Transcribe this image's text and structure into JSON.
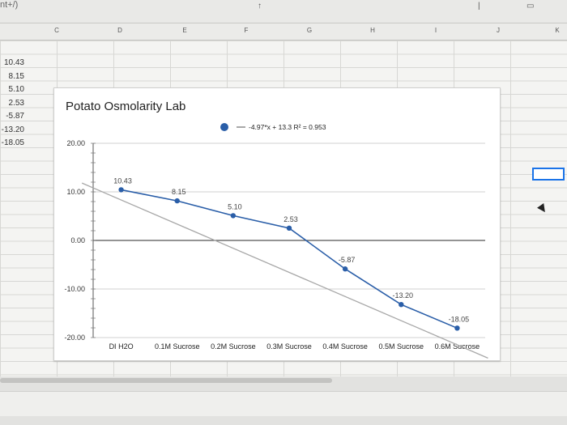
{
  "top_fragment": "nt+/)",
  "columns": [
    "C",
    "D",
    "E",
    "F",
    "G",
    "H",
    "I",
    "J",
    "K"
  ],
  "cell_values": [
    "10.43",
    "8.15",
    "5.10",
    "2.53",
    "-5.87",
    "-13.20",
    "-18.05"
  ],
  "chart_data": {
    "type": "line",
    "title": "Potato Osmolarity Lab",
    "categories": [
      "DI H2O",
      "0.1M Sucrose",
      "0.2M Sucrose",
      "0.3M Sucrose",
      "0.4M Sucrose",
      "0.5M Sucrose",
      "0.6M Sucrose"
    ],
    "series": [
      {
        "values": [
          10.43,
          8.15,
          5.1,
          2.53,
          -5.87,
          -13.2,
          -18.05
        ],
        "data_labels": [
          "10.43",
          "8.15",
          "5.10",
          "2.53",
          "-5.87",
          "-13.20",
          "-18.05"
        ],
        "color": "#2a5ea8"
      }
    ],
    "trendline": {
      "slope": -4.97,
      "intercept": 13.3,
      "r2": 0.953,
      "label": "-4.97*x + 13.3 R² = 0.953",
      "color": "#a8a8a8"
    },
    "ylim": [
      -20,
      20
    ],
    "yticks": [
      "20.00",
      "10.00",
      "0.00",
      "-10.00",
      "-20.00"
    ],
    "ytick_values": [
      20,
      10,
      0,
      -10,
      -20
    ],
    "legend": "top",
    "grid": true
  }
}
